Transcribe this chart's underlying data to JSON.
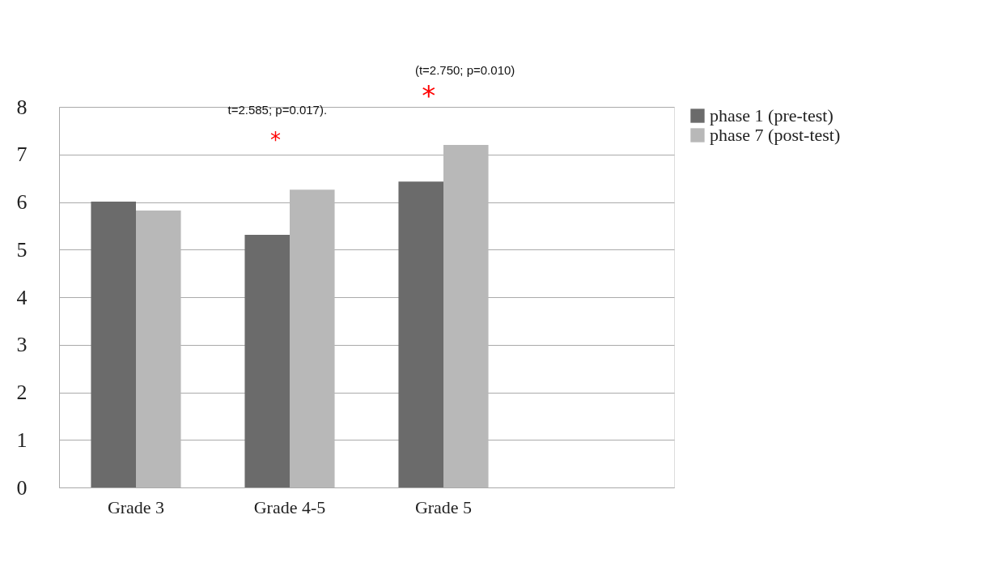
{
  "chart_data": {
    "type": "bar",
    "categories": [
      "Grade 3",
      "Grade 4-5",
      "Grade 5",
      null
    ],
    "series": [
      {
        "name": "phase 1 (pre-test)",
        "color": "#6b6b6b",
        "values": [
          6.01,
          5.31,
          6.43,
          null
        ]
      },
      {
        "name": "phase 7 (post-test)",
        "color": "#b8b8b8",
        "values": [
          5.82,
          6.26,
          7.2,
          null
        ]
      }
    ],
    "ylim": [
      0,
      8
    ],
    "yticks": [
      0,
      1,
      2,
      3,
      4,
      5,
      6,
      7,
      8
    ],
    "grid": "y",
    "legend": "right",
    "annotations": [
      "*",
      "*",
      "t=2.585; p=0.017).",
      "(t=2.750; p=0.010)"
    ]
  }
}
